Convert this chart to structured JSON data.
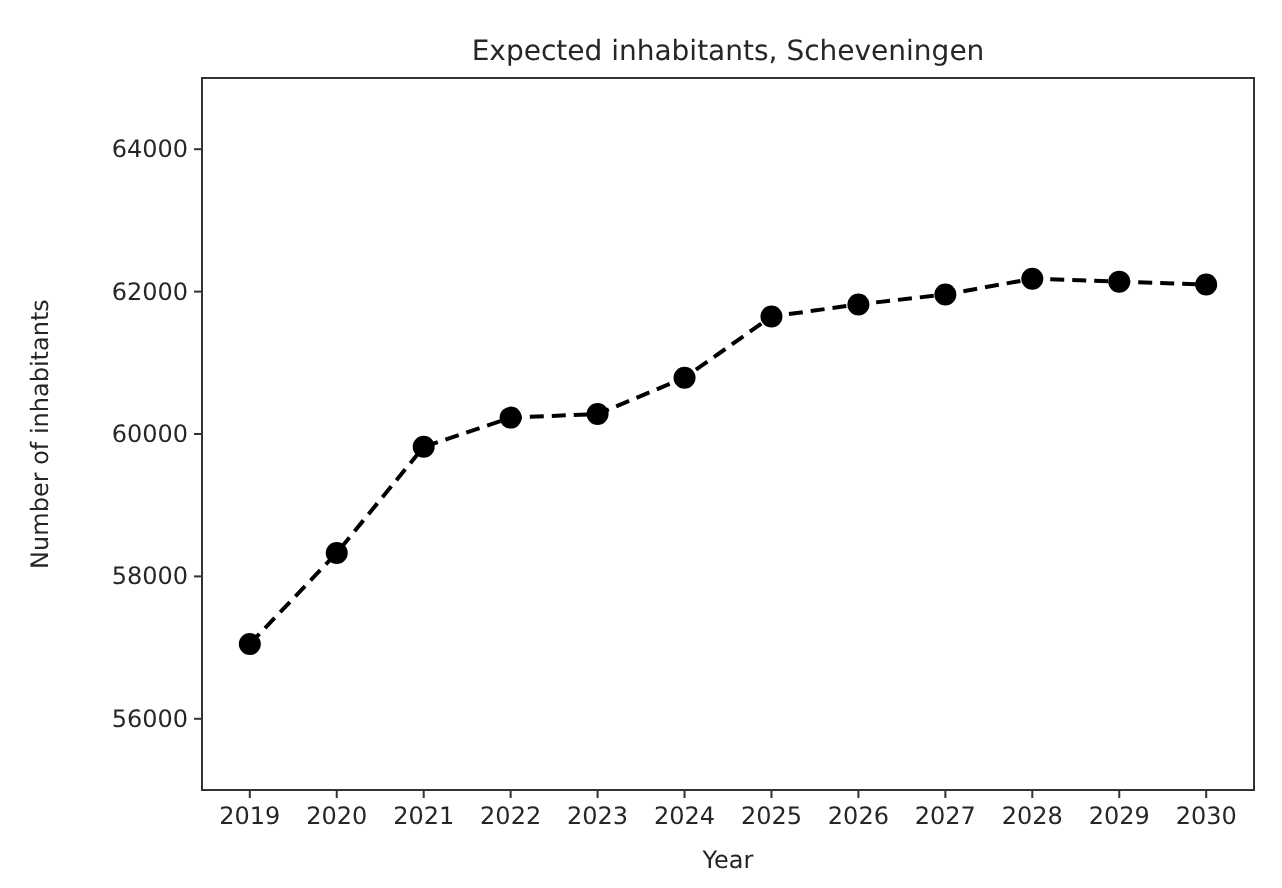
{
  "chart_data": {
    "type": "line",
    "title": "Expected inhabitants, Scheveningen",
    "xlabel": "Year",
    "ylabel": "Number of inhabitants",
    "x": [
      2019,
      2020,
      2021,
      2022,
      2023,
      2024,
      2025,
      2026,
      2027,
      2028,
      2029,
      2030
    ],
    "series": [
      {
        "color": "#000000",
        "values": [
          57050,
          58330,
          59820,
          60230,
          60280,
          60790,
          61650,
          61820,
          61960,
          62180,
          62140,
          62100
        ]
      }
    ],
    "xlim": [
      2018.45,
      2030.55
    ],
    "xticks": [
      2019,
      2020,
      2021,
      2022,
      2023,
      2024,
      2025,
      2026,
      2027,
      2028,
      2029,
      2030
    ],
    "ylim": [
      55000,
      65000
    ],
    "yticks": [
      56000,
      58000,
      60000,
      62000,
      64000
    ],
    "grid": false,
    "marker": "circle",
    "line_style": "dashed"
  }
}
